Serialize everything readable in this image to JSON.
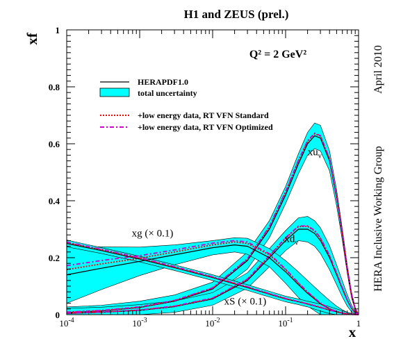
{
  "chart_data": {
    "type": "line",
    "title": "H1 and ZEUS (prel.)",
    "annotation_q2": "Q² = 2 GeV²",
    "side_label_top": "April 2010",
    "side_label_bottom": "HERA Inclusive Working Group",
    "xlabel": "x",
    "ylabel": "xf",
    "x_scale": "log",
    "xlim": [
      0.0001,
      1
    ],
    "ylim": [
      0,
      1
    ],
    "grid": false,
    "legend_position": "top-left",
    "x_ticks": [
      {
        "value": 0.0001,
        "base": "10",
        "exp": "-4"
      },
      {
        "value": 0.001,
        "base": "10",
        "exp": "-3"
      },
      {
        "value": 0.01,
        "base": "10",
        "exp": "-2"
      },
      {
        "value": 0.1,
        "base": "10",
        "exp": "-1"
      },
      {
        "value": 1,
        "base": "1",
        "exp": ""
      }
    ],
    "y_ticks": [
      "0",
      "0.2",
      "0.4",
      "0.6",
      "0.8",
      "1"
    ],
    "legend": [
      {
        "name": "HERAPDF1.0",
        "style": "solid",
        "color": "#000000"
      },
      {
        "name": "total uncertainty",
        "style": "band",
        "color": "#00ffff"
      },
      {
        "name": "+low energy data, RT VFN Standard",
        "style": "dotted",
        "color": "#ff0000"
      },
      {
        "name": "+low energy data, RT VFN Optimized",
        "style": "dashdot",
        "color": "#cc00cc"
      }
    ],
    "curve_labels": [
      {
        "name": "xu",
        "sub": "v",
        "x": 0.25,
        "y": 0.56
      },
      {
        "name": "xd",
        "sub": "v",
        "x": 0.12,
        "y": 0.255
      },
      {
        "name": "xg (× 0.1)",
        "sub": "",
        "x": 0.0015,
        "y": 0.275
      },
      {
        "name": "xS (× 0.1)",
        "sub": "",
        "x": 0.028,
        "y": 0.035
      }
    ],
    "series": [
      {
        "name": "xu",
        "sub": "v",
        "x": [
          0.0001,
          0.0003,
          0.001,
          0.003,
          0.01,
          0.03,
          0.06,
          0.1,
          0.15,
          0.2,
          0.25,
          0.3,
          0.4,
          0.5,
          0.6,
          0.7,
          0.8,
          0.9,
          1.0
        ],
        "central": [
          0.007,
          0.013,
          0.025,
          0.047,
          0.09,
          0.19,
          0.3,
          0.42,
          0.53,
          0.6,
          0.628,
          0.62,
          0.54,
          0.41,
          0.28,
          0.16,
          0.07,
          0.02,
          0.0
        ],
        "band": [
          0.02,
          0.02,
          0.022,
          0.022,
          0.024,
          0.03,
          0.03,
          0.03,
          0.035,
          0.04,
          0.045,
          0.045,
          0.035,
          0.028,
          0.02,
          0.015,
          0.01,
          0.005,
          0.0
        ],
        "standard": [
          0.008,
          0.014,
          0.026,
          0.049,
          0.093,
          0.195,
          0.307,
          0.43,
          0.54,
          0.608,
          0.635,
          0.627,
          0.546,
          0.415,
          0.284,
          0.162,
          0.071,
          0.021,
          0.0
        ],
        "optimized": [
          0.009,
          0.015,
          0.027,
          0.05,
          0.094,
          0.196,
          0.309,
          0.432,
          0.542,
          0.61,
          0.637,
          0.629,
          0.548,
          0.417,
          0.285,
          0.163,
          0.072,
          0.021,
          0.0
        ]
      },
      {
        "name": "xd",
        "sub": "v",
        "x": [
          0.0001,
          0.0003,
          0.001,
          0.003,
          0.01,
          0.03,
          0.06,
          0.1,
          0.15,
          0.2,
          0.25,
          0.3,
          0.4,
          0.5,
          0.6,
          0.7,
          0.8,
          0.9,
          1.0
        ],
        "central": [
          0.004,
          0.008,
          0.015,
          0.028,
          0.055,
          0.12,
          0.2,
          0.26,
          0.3,
          0.3,
          0.285,
          0.26,
          0.2,
          0.14,
          0.09,
          0.05,
          0.022,
          0.006,
          0.0
        ],
        "band": [
          0.018,
          0.018,
          0.02,
          0.02,
          0.022,
          0.027,
          0.032,
          0.035,
          0.04,
          0.045,
          0.045,
          0.045,
          0.042,
          0.035,
          0.028,
          0.02,
          0.012,
          0.005,
          0.0
        ],
        "standard": [
          0.005,
          0.009,
          0.016,
          0.029,
          0.057,
          0.124,
          0.206,
          0.268,
          0.309,
          0.31,
          0.294,
          0.268,
          0.206,
          0.144,
          0.093,
          0.052,
          0.023,
          0.006,
          0.0
        ],
        "optimized": [
          0.005,
          0.009,
          0.016,
          0.03,
          0.058,
          0.125,
          0.207,
          0.27,
          0.311,
          0.312,
          0.296,
          0.27,
          0.208,
          0.146,
          0.094,
          0.052,
          0.023,
          0.006,
          0.0
        ]
      },
      {
        "name": "xg (× 0.1)",
        "sub": "",
        "x": [
          0.0001,
          0.0003,
          0.001,
          0.003,
          0.01,
          0.02,
          0.03,
          0.06,
          0.1,
          0.15,
          0.2,
          0.3,
          0.4,
          0.5,
          0.6,
          0.7,
          0.8,
          1.0
        ],
        "central": [
          0.14,
          0.163,
          0.187,
          0.21,
          0.235,
          0.245,
          0.24,
          0.2,
          0.15,
          0.105,
          0.075,
          0.038,
          0.02,
          0.01,
          0.005,
          0.002,
          0.001,
          0.0
        ],
        "band": [
          0.1,
          0.075,
          0.05,
          0.035,
          0.025,
          0.025,
          0.028,
          0.032,
          0.04,
          0.045,
          0.045,
          0.04,
          0.03,
          0.02,
          0.012,
          0.006,
          0.003,
          0.0
        ],
        "standard": [
          0.158,
          0.178,
          0.198,
          0.22,
          0.245,
          0.255,
          0.25,
          0.21,
          0.158,
          0.11,
          0.079,
          0.04,
          0.021,
          0.011,
          0.005,
          0.002,
          0.001,
          0.0
        ],
        "optimized": [
          0.172,
          0.19,
          0.207,
          0.227,
          0.251,
          0.26,
          0.255,
          0.214,
          0.16,
          0.112,
          0.08,
          0.041,
          0.021,
          0.011,
          0.005,
          0.002,
          0.001,
          0.0
        ]
      },
      {
        "name": "xS (× 0.1)",
        "sub": "",
        "x": [
          0.0001,
          0.0003,
          0.001,
          0.003,
          0.01,
          0.03,
          0.06,
          0.1,
          0.15,
          0.2,
          0.3,
          0.4,
          0.5,
          0.6,
          0.7,
          0.8,
          1.0
        ],
        "central": [
          0.25,
          0.225,
          0.195,
          0.165,
          0.13,
          0.095,
          0.072,
          0.055,
          0.045,
          0.037,
          0.025,
          0.016,
          0.01,
          0.006,
          0.003,
          0.001,
          0.0
        ],
        "band": [
          0.012,
          0.01,
          0.01,
          0.01,
          0.01,
          0.01,
          0.01,
          0.01,
          0.01,
          0.01,
          0.012,
          0.012,
          0.01,
          0.008,
          0.005,
          0.003,
          0.0
        ],
        "standard": [
          0.253,
          0.228,
          0.198,
          0.167,
          0.132,
          0.097,
          0.073,
          0.056,
          0.046,
          0.038,
          0.026,
          0.016,
          0.01,
          0.006,
          0.003,
          0.001,
          0.0
        ],
        "optimized": [
          0.255,
          0.23,
          0.2,
          0.169,
          0.133,
          0.098,
          0.074,
          0.057,
          0.046,
          0.038,
          0.026,
          0.016,
          0.01,
          0.006,
          0.003,
          0.001,
          0.0
        ]
      }
    ]
  }
}
